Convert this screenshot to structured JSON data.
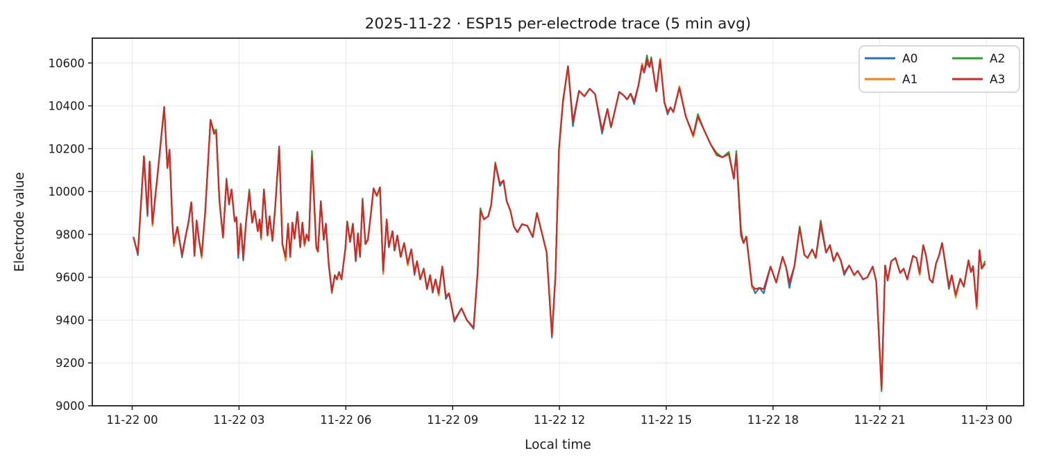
{
  "chart_data": {
    "type": "line",
    "title": "2025-11-22 · ESP15 per-electrode trace (5 min avg)",
    "xlabel": "Local time",
    "ylabel": "Electrode value",
    "grid": true,
    "legend": {
      "location": "upper right",
      "columns": 2,
      "entries": [
        "A0",
        "A1",
        "A2",
        "A3"
      ]
    },
    "x_tick_labels": [
      "11-22 00",
      "11-22 03",
      "11-22 06",
      "11-22 09",
      "11-22 12",
      "11-22 15",
      "11-22 18",
      "11-22 21",
      "11-23 00"
    ],
    "x_tick_hours": [
      0,
      3,
      6,
      9,
      12,
      15,
      18,
      21,
      24
    ],
    "y_ticks": [
      9000,
      9200,
      9400,
      9600,
      9800,
      10000,
      10200,
      10400,
      10600
    ],
    "xlim_hours": [
      -1.12,
      25.04
    ],
    "ylim": [
      9000,
      10716
    ],
    "x_hours_since": "2025-11-22 00:00",
    "x_hours": [
      0.04,
      0.1,
      0.16,
      0.33,
      0.43,
      0.49,
      0.57,
      0.72,
      0.9,
      0.99,
      1.05,
      1.13,
      1.17,
      1.27,
      1.33,
      1.4,
      1.5,
      1.58,
      1.66,
      1.72,
      1.75,
      1.81,
      1.88,
      1.95,
      2.05,
      2.2,
      2.3,
      2.36,
      2.45,
      2.55,
      2.65,
      2.72,
      2.79,
      2.88,
      2.93,
      2.98,
      3.05,
      3.12,
      3.2,
      3.29,
      3.37,
      3.44,
      3.53,
      3.58,
      3.62,
      3.7,
      3.8,
      3.86,
      3.94,
      4.02,
      4.13,
      4.22,
      4.31,
      4.38,
      4.44,
      4.5,
      4.56,
      4.64,
      4.72,
      4.78,
      4.84,
      4.9,
      4.96,
      5.05,
      5.17,
      5.22,
      5.3,
      5.38,
      5.44,
      5.52,
      5.61,
      5.69,
      5.75,
      5.81,
      5.88,
      5.99,
      6.04,
      6.12,
      6.2,
      6.28,
      6.34,
      6.4,
      6.47,
      6.55,
      6.62,
      6.7,
      6.78,
      6.87,
      6.96,
      7.05,
      7.15,
      7.21,
      7.31,
      7.37,
      7.45,
      7.54,
      7.64,
      7.74,
      7.84,
      7.93,
      8.0,
      8.09,
      8.19,
      8.28,
      8.37,
      8.44,
      8.52,
      8.61,
      8.71,
      8.81,
      8.9,
      9.05,
      9.25,
      9.4,
      9.59,
      9.7,
      9.78,
      9.88,
      10.0,
      10.08,
      10.2,
      10.33,
      10.43,
      10.52,
      10.62,
      10.72,
      10.82,
      10.95,
      11.1,
      11.25,
      11.37,
      11.64,
      11.79,
      11.89,
      11.99,
      12.1,
      12.24,
      12.38,
      12.55,
      12.7,
      12.85,
      13.0,
      13.2,
      13.35,
      13.45,
      13.68,
      13.8,
      13.9,
      14.0,
      14.1,
      14.22,
      14.32,
      14.38,
      14.46,
      14.53,
      14.58,
      14.72,
      14.83,
      14.95,
      15.04,
      15.12,
      15.2,
      15.37,
      15.55,
      15.76,
      15.89,
      16.07,
      16.25,
      16.42,
      16.58,
      16.76,
      16.9,
      16.97,
      17.1,
      17.17,
      17.25,
      17.41,
      17.5,
      17.62,
      17.74,
      17.93,
      18.09,
      18.27,
      18.37,
      18.46,
      18.6,
      18.75,
      18.88,
      18.97,
      19.1,
      19.2,
      19.34,
      19.49,
      19.6,
      19.7,
      19.8,
      19.9,
      20.0,
      20.14,
      20.28,
      20.38,
      20.53,
      20.65,
      20.8,
      20.9,
      21.05,
      21.15,
      21.22,
      21.32,
      21.44,
      21.57,
      21.67,
      21.77,
      21.93,
      22.03,
      22.12,
      22.22,
      22.3,
      22.4,
      22.48,
      22.58,
      22.66,
      22.75,
      22.94,
      23.02,
      23.13,
      23.26,
      23.36,
      23.49,
      23.56,
      23.62,
      23.72,
      23.8,
      23.86,
      23.95
    ],
    "series": [
      {
        "name": "A0",
        "color": "#1f77b4",
        "values": [
          9785,
          9745,
          9703,
          10165,
          9885,
          10140,
          9850,
          10090,
          10395,
          10110,
          10195,
          9855,
          9760,
          9835,
          9770,
          9693,
          9790,
          9855,
          9950,
          9800,
          9700,
          9865,
          9770,
          9700,
          9900,
          10335,
          10270,
          10280,
          9960,
          9785,
          10061,
          9940,
          10010,
          9860,
          9880,
          9690,
          9850,
          9678,
          9860,
          10000,
          9855,
          9910,
          9815,
          9870,
          9785,
          10010,
          9795,
          9885,
          9770,
          9935,
          10210,
          9755,
          9695,
          9850,
          9695,
          9855,
          9780,
          9905,
          9740,
          9855,
          9755,
          9800,
          9770,
          10165,
          9745,
          9720,
          9955,
          9775,
          9850,
          9655,
          9535,
          9610,
          9590,
          9625,
          9590,
          9735,
          9860,
          9765,
          9850,
          9675,
          9805,
          9695,
          9960,
          9755,
          9775,
          9890,
          10015,
          9980,
          10020,
          9618,
          9870,
          9740,
          9815,
          9725,
          9795,
          9695,
          9760,
          9665,
          9730,
          9610,
          9675,
          9590,
          9640,
          9545,
          9610,
          9527,
          9590,
          9525,
          9650,
          9498,
          9525,
          9392,
          9455,
          9400,
          9359,
          9620,
          9910,
          9870,
          9885,
          9935,
          10128,
          10026,
          10052,
          9955,
          9912,
          9837,
          9810,
          9848,
          9840,
          9788,
          9900,
          9717,
          9318,
          9610,
          10200,
          10420,
          10585,
          10305,
          10470,
          10445,
          10480,
          10455,
          10270,
          10385,
          10300,
          10465,
          10450,
          10430,
          10457,
          10408,
          10495,
          10588,
          10555,
          10600,
          10581,
          10619,
          10468,
          10615,
          10415,
          10360,
          10393,
          10371,
          10484,
          10350,
          10263,
          10350,
          10285,
          10220,
          10170,
          10160,
          10175,
          10060,
          10175,
          9795,
          9760,
          9790,
          9560,
          9525,
          9550,
          9525,
          9650,
          9575,
          9695,
          9645,
          9550,
          9650,
          9830,
          9705,
          9690,
          9730,
          9690,
          9840,
          9715,
          9750,
          9675,
          9715,
          9680,
          9610,
          9655,
          9610,
          9630,
          9590,
          9600,
          9650,
          9580,
          9080,
          9655,
          9585,
          9675,
          9690,
          9620,
          9640,
          9590,
          9700,
          9690,
          9620,
          9750,
          9700,
          9590,
          9575,
          9665,
          9700,
          9760,
          9545,
          9609,
          9518,
          9593,
          9556,
          9679,
          9624,
          9652,
          9464,
          9727,
          9640,
          9661
        ]
      },
      {
        "name": "A1",
        "color": "#ff7f0e",
        "values": [
          9785,
          9745,
          9713,
          10165,
          9895,
          10140,
          9840,
          10090,
          10395,
          10110,
          10195,
          9855,
          9745,
          9835,
          9770,
          9705,
          9790,
          9855,
          9950,
          9800,
          9700,
          9865,
          9770,
          9690,
          9900,
          10335,
          10270,
          10280,
          9960,
          9785,
          10055,
          9940,
          10010,
          9860,
          9880,
          9705,
          9850,
          9690,
          9860,
          10000,
          9855,
          9910,
          9815,
          9870,
          9775,
          10010,
          9795,
          9885,
          9770,
          9935,
          10210,
          9755,
          9677,
          9850,
          9695,
          9855,
          9780,
          9905,
          9740,
          9855,
          9745,
          9800,
          9770,
          10165,
          9733,
          9720,
          9955,
          9775,
          9850,
          9665,
          9525,
          9610,
          9590,
          9625,
          9590,
          9735,
          9860,
          9765,
          9850,
          9675,
          9805,
          9695,
          9960,
          9755,
          9775,
          9890,
          10015,
          9980,
          10020,
          9615,
          9870,
          9740,
          9815,
          9725,
          9795,
          9695,
          9760,
          9655,
          9730,
          9620,
          9675,
          9590,
          9640,
          9545,
          9610,
          9535,
          9590,
          9515,
          9650,
          9510,
          9525,
          9400,
          9455,
          9400,
          9365,
          9620,
          9910,
          9870,
          9885,
          9935,
          10128,
          10036,
          10052,
          9955,
          9912,
          9837,
          9810,
          9848,
          9840,
          9788,
          9900,
          9717,
          9330,
          9610,
          10200,
          10430,
          10585,
          10325,
          10470,
          10445,
          10480,
          10455,
          10285,
          10385,
          10300,
          10465,
          10450,
          10430,
          10457,
          10420,
          10495,
          10598,
          10555,
          10620,
          10581,
          10619,
          10468,
          10620,
          10415,
          10371,
          10393,
          10371,
          10492,
          10350,
          10255,
          10350,
          10285,
          10220,
          10170,
          10160,
          10175,
          10060,
          10175,
          9795,
          9760,
          9790,
          9550,
          9545,
          9550,
          9545,
          9650,
          9575,
          9695,
          9645,
          9575,
          9650,
          9830,
          9705,
          9690,
          9730,
          9690,
          9855,
          9715,
          9750,
          9675,
          9715,
          9680,
          9620,
          9655,
          9610,
          9630,
          9590,
          9600,
          9650,
          9580,
          9070,
          9655,
          9585,
          9675,
          9690,
          9620,
          9640,
          9590,
          9700,
          9690,
          9610,
          9750,
          9700,
          9590,
          9575,
          9665,
          9700,
          9760,
          9556,
          9609,
          9505,
          9593,
          9556,
          9679,
          9624,
          9652,
          9452,
          9727,
          9640,
          9661
        ]
      },
      {
        "name": "A2",
        "color": "#2ca02c",
        "values": [
          9785,
          9745,
          9713,
          10165,
          9895,
          10140,
          9850,
          10090,
          10395,
          10110,
          10195,
          9855,
          9760,
          9835,
          9770,
          9705,
          9790,
          9855,
          9950,
          9800,
          9700,
          9865,
          9770,
          9700,
          9900,
          10335,
          10282,
          10290,
          9960,
          9785,
          10055,
          9940,
          10010,
          9860,
          9880,
          9705,
          9850,
          9690,
          9860,
          10010,
          9855,
          9910,
          9815,
          9870,
          9785,
          10010,
          9795,
          9885,
          9770,
          9935,
          10210,
          9755,
          9695,
          9850,
          9695,
          9855,
          9780,
          9905,
          9740,
          9855,
          9755,
          9800,
          9770,
          10190,
          9745,
          9720,
          9955,
          9775,
          9850,
          9665,
          9527,
          9610,
          9590,
          9625,
          9590,
          9735,
          9860,
          9765,
          9850,
          9675,
          9805,
          9695,
          9968,
          9755,
          9775,
          9890,
          10015,
          9980,
          10020,
          9630,
          9870,
          9740,
          9815,
          9725,
          9795,
          9695,
          9760,
          9665,
          9730,
          9620,
          9675,
          9590,
          9640,
          9545,
          9610,
          9535,
          9590,
          9525,
          9650,
          9510,
          9525,
          9400,
          9455,
          9400,
          9365,
          9620,
          9922,
          9870,
          9885,
          9935,
          10136,
          10036,
          10052,
          9955,
          9912,
          9837,
          9810,
          9848,
          9840,
          9788,
          9900,
          9717,
          9330,
          9610,
          10200,
          10420,
          10585,
          10325,
          10470,
          10445,
          10480,
          10455,
          10285,
          10385,
          10300,
          10465,
          10450,
          10430,
          10457,
          10420,
          10495,
          10588,
          10555,
          10636,
          10581,
          10627,
          10468,
          10615,
          10415,
          10371,
          10393,
          10371,
          10484,
          10350,
          10263,
          10362,
          10285,
          10220,
          10180,
          10160,
          10185,
          10060,
          10190,
          9825,
          9760,
          9790,
          9560,
          9545,
          9550,
          9545,
          9650,
          9575,
          9695,
          9645,
          9575,
          9650,
          9838,
          9705,
          9690,
          9730,
          9690,
          9865,
          9715,
          9750,
          9675,
          9715,
          9680,
          9620,
          9655,
          9610,
          9630,
          9590,
          9600,
          9650,
          9580,
          9068,
          9655,
          9585,
          9675,
          9690,
          9620,
          9640,
          9590,
          9700,
          9690,
          9620,
          9750,
          9700,
          9590,
          9575,
          9665,
          9700,
          9760,
          9556,
          9609,
          9518,
          9593,
          9556,
          9679,
          9624,
          9652,
          9464,
          9727,
          9640,
          9673
        ]
      },
      {
        "name": "A3",
        "color": "#d62728",
        "values": [
          9785,
          9745,
          9713,
          10165,
          9895,
          10140,
          9850,
          10090,
          10395,
          10110,
          10195,
          9855,
          9760,
          9835,
          9770,
          9705,
          9790,
          9855,
          9950,
          9800,
          9700,
          9865,
          9770,
          9700,
          9900,
          10335,
          10270,
          10280,
          9960,
          9785,
          10055,
          9940,
          10010,
          9860,
          9880,
          9705,
          9850,
          9690,
          9860,
          10000,
          9855,
          9910,
          9815,
          9870,
          9785,
          10010,
          9795,
          9885,
          9770,
          9935,
          10210,
          9755,
          9695,
          9850,
          9695,
          9855,
          9780,
          9905,
          9740,
          9855,
          9755,
          9800,
          9770,
          10165,
          9745,
          9720,
          9955,
          9775,
          9850,
          9665,
          9535,
          9610,
          9590,
          9625,
          9590,
          9735,
          9860,
          9765,
          9850,
          9675,
          9805,
          9695,
          9960,
          9755,
          9775,
          9890,
          10015,
          9980,
          10020,
          9630,
          9870,
          9740,
          9815,
          9725,
          9795,
          9695,
          9760,
          9665,
          9730,
          9620,
          9675,
          9590,
          9640,
          9545,
          9610,
          9535,
          9590,
          9525,
          9650,
          9510,
          9525,
          9400,
          9455,
          9400,
          9365,
          9620,
          9910,
          9870,
          9885,
          9935,
          10128,
          10036,
          10052,
          9955,
          9912,
          9837,
          9810,
          9848,
          9840,
          9788,
          9900,
          9717,
          9330,
          9610,
          10200,
          10420,
          10585,
          10325,
          10470,
          10445,
          10480,
          10455,
          10285,
          10385,
          10300,
          10465,
          10450,
          10430,
          10457,
          10420,
          10495,
          10588,
          10555,
          10620,
          10581,
          10619,
          10468,
          10615,
          10415,
          10371,
          10393,
          10371,
          10484,
          10350,
          10263,
          10350,
          10285,
          10220,
          10170,
          10160,
          10175,
          10060,
          10175,
          9795,
          9760,
          9790,
          9560,
          9545,
          9550,
          9545,
          9650,
          9575,
          9695,
          9645,
          9575,
          9650,
          9830,
          9705,
          9690,
          9730,
          9690,
          9855,
          9715,
          9750,
          9675,
          9715,
          9680,
          9620,
          9655,
          9610,
          9630,
          9590,
          9600,
          9650,
          9580,
          9080,
          9655,
          9585,
          9675,
          9690,
          9620,
          9640,
          9590,
          9700,
          9690,
          9620,
          9750,
          9700,
          9590,
          9575,
          9665,
          9700,
          9760,
          9556,
          9609,
          9518,
          9593,
          9556,
          9679,
          9624,
          9652,
          9464,
          9727,
          9640,
          9661
        ]
      }
    ]
  }
}
